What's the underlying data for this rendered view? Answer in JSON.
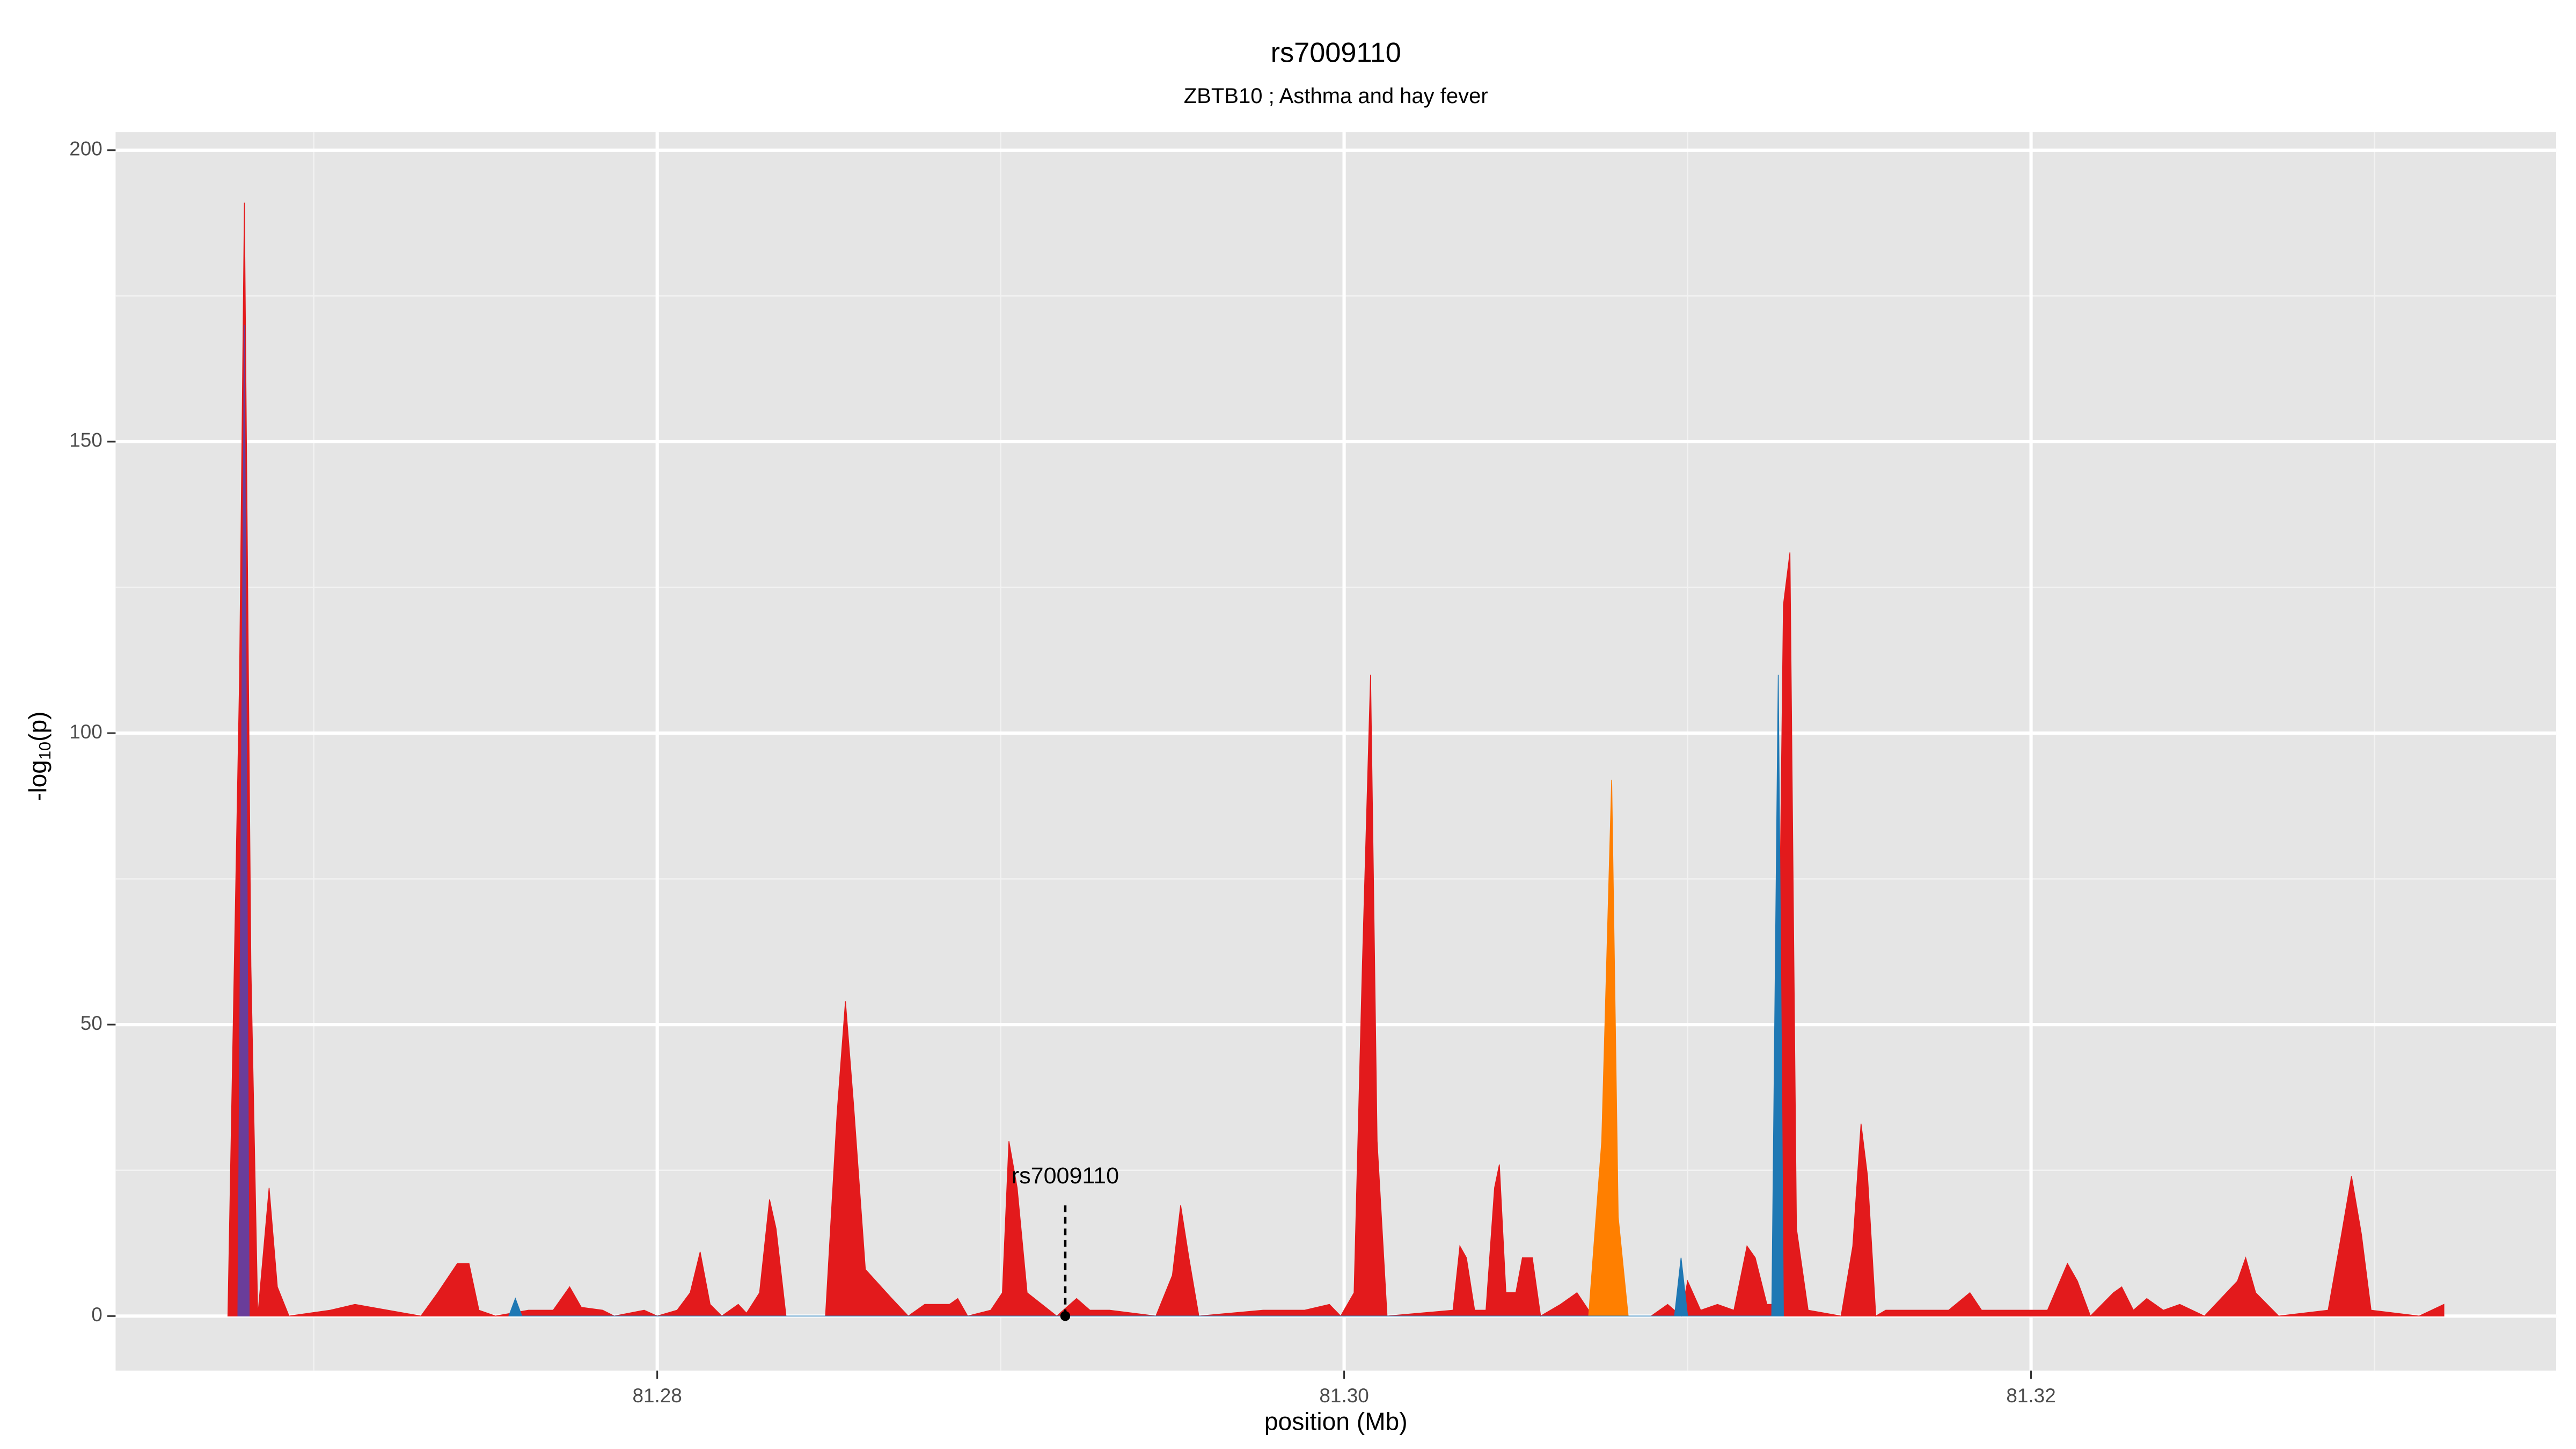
{
  "chart_data": {
    "type": "area",
    "title": "rs7009110",
    "subtitle": "ZBTB10 ; Asthma and hay fever",
    "xlabel": "position (Mb)",
    "ylabel": {
      "prefix": "-log",
      "sub": "10",
      "suffix": "(p)"
    },
    "xlim": [
      81.26423,
      81.33529
    ],
    "ylim": [
      -9.35,
      203.1
    ],
    "xticks": [
      81.28,
      {
        "value": 81.3,
        "label": "81.30"
      },
      81.32
    ],
    "yticks": [
      0,
      50,
      100,
      150,
      200
    ],
    "x_minor_ticks": [
      81.27,
      81.29,
      81.31,
      81.33
    ],
    "y_minor_ticks": [
      25,
      75,
      125,
      175
    ],
    "grid": true,
    "series": [
      {
        "color": "#e31a1c",
        "x": [
          81.2675,
          81.26784,
          81.26798,
          81.26817,
          81.26837,
          81.2687,
          81.26894,
          81.26928,
          81.27048,
          81.2712,
          81.27168,
          81.27312,
          81.27361,
          81.27418,
          81.27452,
          81.27481,
          81.27529,
          81.27625,
          81.27697,
          81.27745,
          81.27779,
          81.27841,
          81.27875,
          81.27962,
          81.28,
          81.28058,
          81.28096,
          81.28125,
          81.28154,
          81.28188,
          81.28236,
          81.2826,
          81.28298,
          81.28327,
          81.28346,
          81.28375,
          81.2849,
          81.28524,
          81.28548,
          81.28572,
          81.28606,
          81.28683,
          81.28731,
          81.28779,
          81.28851,
          81.28875,
          81.28904,
          81.28971,
          81.29005,
          81.29024,
          81.29048,
          81.29077,
          81.29163,
          81.29221,
          81.2926,
          81.29317,
          81.29452,
          81.295,
          81.29524,
          81.29548,
          81.29577,
          81.29764,
          81.29885,
          81.29957,
          81.2999,
          81.30029,
          81.30053,
          81.30077,
          81.30096,
          81.30125,
          81.30317,
          81.30337,
          81.30356,
          81.3038,
          81.30413,
          81.30438,
          81.30452,
          81.30471,
          81.305,
          81.30519,
          81.30548,
          81.30572,
          81.3063,
          81.30678,
          81.30712,
          81.3075,
          81.30894,
          81.30942,
          81.30981,
          81.31,
          81.31038,
          81.31087,
          81.31135,
          81.31173,
          81.31197,
          81.31231,
          81.31255,
          81.31279,
          81.31298,
          81.31317,
          81.31351,
          81.31447,
          81.31481,
          81.31505,
          81.31524,
          81.31548,
          81.31577,
          81.31663,
          81.3176,
          81.31822,
          81.31856,
          81.32048,
          81.32077,
          81.32106,
          81.32135,
          81.32173,
          81.3224,
          81.32264,
          81.32298,
          81.32337,
          81.32385,
          81.32433,
          81.32505,
          81.32601,
          81.32625,
          81.32654,
          81.32721,
          81.32865,
          81.32904,
          81.32933,
          81.32962,
          81.3299,
          81.3313,
          81.33202
        ],
        "values": [
          0,
          110,
          191,
          60,
          0,
          22,
          5,
          0,
          1,
          2,
          1.5,
          0,
          4,
          9,
          9,
          1,
          0,
          1,
          1,
          5,
          1.5,
          1,
          0,
          1,
          0,
          1,
          4,
          11,
          2,
          0,
          2,
          0.5,
          4,
          20,
          15,
          0,
          0,
          35,
          54,
          36,
          8,
          3,
          0,
          2,
          2,
          3,
          0,
          1,
          4,
          30,
          22,
          4,
          0,
          3,
          1,
          1,
          0,
          7,
          19,
          10,
          0,
          1,
          1,
          2,
          0,
          4,
          60,
          110,
          30,
          0,
          1,
          12,
          10,
          1,
          1,
          22,
          26,
          4,
          4,
          10,
          10,
          0,
          2,
          4,
          1,
          0,
          0,
          2,
          0,
          6,
          1,
          2,
          1,
          12,
          10,
          2,
          2,
          122,
          131,
          15,
          1,
          0,
          12,
          33,
          24,
          0,
          1,
          1,
          1,
          4,
          1,
          1,
          5,
          9,
          6,
          0,
          4,
          5,
          1,
          3,
          1,
          2,
          0,
          6,
          10,
          4,
          0,
          1,
          14,
          24,
          14,
          1,
          0,
          2
        ]
      },
      {
        "color": "#ff7f00",
        "x": [
          81.30712,
          81.3075,
          81.30779,
          81.30798,
          81.30827
        ],
        "values": [
          0,
          30,
          92,
          17,
          0
        ]
      },
      {
        "color": "#1f78b4",
        "x": [
          81.27568,
          81.27587,
          81.27606,
          81.30962,
          81.30981,
          81.31,
          81.31245,
          81.31264,
          81.31274,
          81.31279
        ],
        "values": [
          0,
          3,
          0,
          0,
          10,
          0,
          0,
          110,
          40,
          0
        ]
      },
      {
        "color": "#6a3d9a",
        "x": [
          81.26779,
          81.26798,
          81.26812
        ],
        "values": [
          0,
          170,
          0
        ]
      }
    ],
    "annotation": {
      "text": "rs7009110",
      "x": 81.29188,
      "y": 0
    }
  }
}
